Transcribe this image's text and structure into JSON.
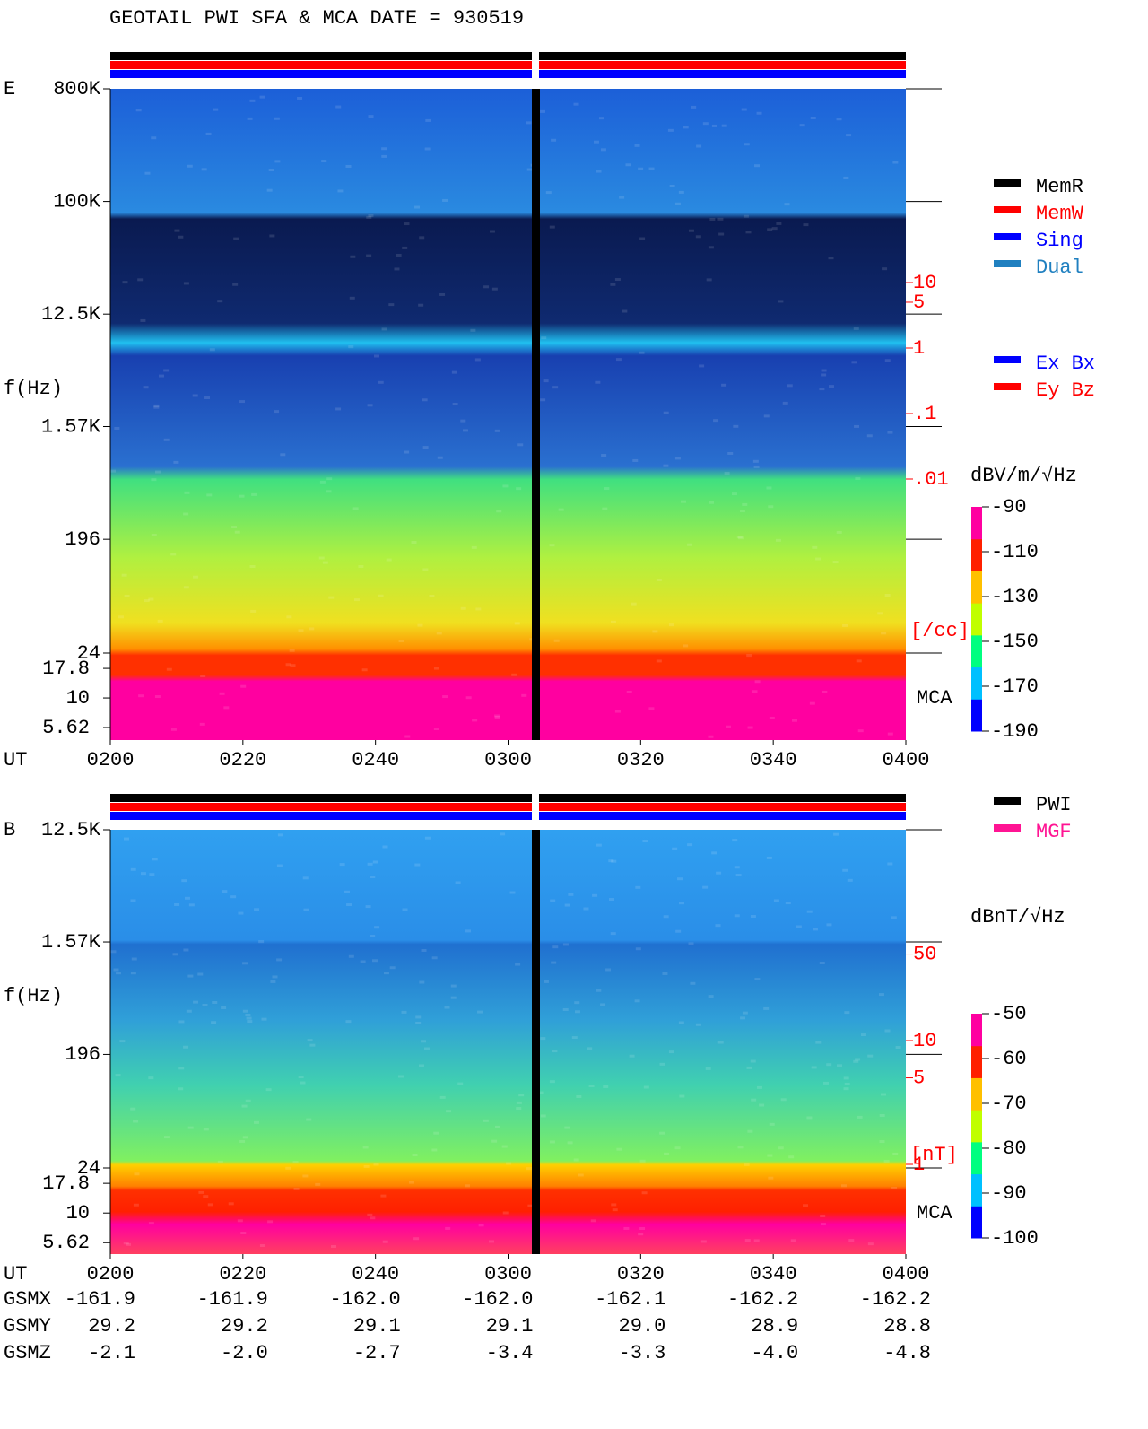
{
  "title": "GEOTAIL  PWI SFA & MCA   DATE = 930519",
  "chart_data": [
    {
      "type": "spectrogram",
      "panel_label": "E",
      "y_label": "f(Hz)",
      "x_label": "UT",
      "mca_label": "MCA",
      "log_y": true,
      "ylim": [
        24,
        800000
      ],
      "yticks": [
        {
          "value": 800000,
          "label": "800K"
        },
        {
          "value": 100000,
          "label": "100K"
        },
        {
          "value": 12500,
          "label": "12.5K"
        },
        {
          "value": 1570,
          "label": "1.57K"
        },
        196,
        24
      ],
      "mca_ylim": [
        4.4,
        24
      ],
      "mca_yticks": [
        17.8,
        10,
        5.62
      ],
      "y2_label": "[/cc]",
      "y2_color": "#ff0000",
      "y2lim": [
        0.001,
        1000
      ],
      "y2ticks": [
        10,
        5,
        1,
        {
          "value": 0.1,
          "label": ".1"
        },
        {
          "value": 0.01,
          "label": ".01"
        }
      ],
      "categories": [
        "0200",
        "0220",
        "0240",
        "0300",
        "0320",
        "0340",
        "0400"
      ],
      "colorbar": {
        "label": "dBV/m/√Hz",
        "lim": [
          -190,
          -90
        ],
        "ticks": [
          -90,
          -110,
          -130,
          -150,
          -170,
          -190
        ],
        "colors": [
          "#0000ff",
          "#00c0ff",
          "#00ff80",
          "#c0ff00",
          "#ffc000",
          "#ff2000",
          "#ff00a0"
        ]
      },
      "legend": [
        {
          "name": "MemR",
          "color": "#000000"
        },
        {
          "name": "MemW",
          "color": "#ff0000"
        },
        {
          "name": "Sing",
          "color": "#0000ff"
        },
        {
          "name": "Dual",
          "color": "#2080c0"
        }
      ],
      "legend2": [
        {
          "name": "Ex Bx",
          "color": "#0000ff"
        },
        {
          "name": "Ey Bz",
          "color": "#ff0000"
        }
      ]
    },
    {
      "type": "spectrogram",
      "panel_label": "B",
      "y_label": "f(Hz)",
      "x_label": "UT",
      "mca_label": "MCA",
      "log_y": true,
      "ylim": [
        24,
        12500
      ],
      "yticks": [
        {
          "value": 12500,
          "label": "12.5K"
        },
        {
          "value": 1570,
          "label": "1.57K"
        },
        196,
        24
      ],
      "mca_ylim": [
        4.5,
        24
      ],
      "mca_yticks": [
        17.8,
        10,
        5.62
      ],
      "y2_label": "[nT]",
      "y2_color": "#ff0000",
      "y2lim": [
        1,
        100
      ],
      "y2ticks": [
        50,
        10,
        5,
        1
      ],
      "categories": [
        "0200",
        "0220",
        "0240",
        "0300",
        "0320",
        "0340",
        "0400"
      ],
      "colorbar": {
        "label": "dBnT/√Hz",
        "lim": [
          -100,
          -50
        ],
        "ticks": [
          -50,
          -60,
          -70,
          -80,
          -90,
          -100
        ],
        "colors": [
          "#0000ff",
          "#00c0ff",
          "#00ff80",
          "#c0ff00",
          "#ffc000",
          "#ff2000",
          "#ff00a0"
        ]
      },
      "legend": [
        {
          "name": "PWI",
          "color": "#000000"
        },
        {
          "name": "MGF",
          "color": "#ff1493"
        }
      ]
    }
  ],
  "orbit": {
    "rows": [
      {
        "name": "GSMX",
        "values": [
          "-161.9",
          "-161.9",
          "-162.0",
          "-162.0",
          "-162.1",
          "-162.2",
          "-162.2"
        ]
      },
      {
        "name": "GSMY",
        "values": [
          "29.2",
          "29.2",
          "29.1",
          "29.1",
          "29.0",
          "28.9",
          "28.8"
        ]
      },
      {
        "name": "GSMZ",
        "values": [
          "-2.1",
          "-2.0",
          "-2.7",
          "-3.4",
          "-3.3",
          "-4.0",
          "-4.8"
        ]
      }
    ]
  }
}
